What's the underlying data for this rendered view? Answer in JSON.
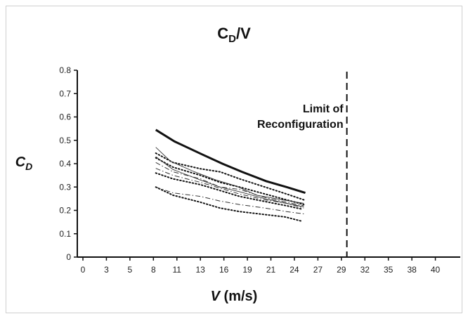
{
  "chart_data": {
    "type": "line",
    "title_main": "C",
    "title_sub": "D",
    "title_tail": "/V",
    "ylabel_main": "C",
    "ylabel_sub": "D",
    "xlabel_main": "V",
    "xlabel_units": " (m/s)",
    "x_ticks": [
      "0",
      "3",
      "5",
      "8",
      "11",
      "13",
      "16",
      "19",
      "21",
      "24",
      "27",
      "29",
      "32",
      "35",
      "38",
      "40"
    ],
    "y_ticks": [
      "0",
      "0.1",
      "0.2",
      "0.3",
      "0.4",
      "0.5",
      "0.6",
      "0.7",
      "0.8"
    ],
    "xlim": [
      0,
      42
    ],
    "ylim": [
      0,
      0.8
    ],
    "annotation": {
      "lines": [
        "Limit of",
        "Reconfiguration"
      ],
      "x": 29.7
    },
    "series": [
      {
        "style": "thick-solid",
        "x": [
          8.3,
          10.7,
          13.2,
          15.8,
          18.3,
          20.6,
          23.0,
          25.4
        ],
        "y": [
          0.545,
          0.495,
          0.44,
          0.4,
          0.365,
          0.325,
          0.3,
          0.275
        ]
      },
      {
        "style": "dotted",
        "x": [
          8.3,
          10.5,
          13.0,
          15.5,
          18.0,
          20.5,
          23.0,
          25.2
        ],
        "y": [
          0.445,
          0.405,
          0.378,
          0.365,
          0.335,
          0.3,
          0.27,
          0.245
        ]
      },
      {
        "style": "dotted",
        "x": [
          8.3,
          10.5,
          13.0,
          15.5,
          18.0,
          20.5,
          23.0,
          25.2
        ],
        "y": [
          0.425,
          0.385,
          0.35,
          0.32,
          0.3,
          0.27,
          0.245,
          0.225
        ]
      },
      {
        "style": "dotted",
        "x": [
          8.3,
          10.5,
          13.0,
          15.5,
          18.0,
          20.5,
          23.0,
          25.0
        ],
        "y": [
          0.36,
          0.335,
          0.31,
          0.285,
          0.26,
          0.238,
          0.22,
          0.205
        ]
      },
      {
        "style": "dotted",
        "x": [
          8.3,
          10.5,
          13.0,
          15.5,
          18.0,
          20.5,
          22.8,
          24.8
        ],
        "y": [
          0.3,
          0.265,
          0.235,
          0.21,
          0.195,
          0.182,
          0.172,
          0.155
        ]
      },
      {
        "style": "thin-solid",
        "x": [
          8.3,
          10.2,
          12.5,
          15.0,
          17.5,
          19.8,
          22.5,
          25.2
        ],
        "y": [
          0.47,
          0.41,
          0.365,
          0.33,
          0.305,
          0.265,
          0.245,
          0.23
        ]
      },
      {
        "style": "thin-solid",
        "x": [
          8.3,
          10.5,
          13.0,
          15.5,
          18.0,
          20.5,
          23.0,
          25.2
        ],
        "y": [
          0.43,
          0.375,
          0.33,
          0.3,
          0.28,
          0.25,
          0.23,
          0.215
        ]
      },
      {
        "style": "dash-dot",
        "x": [
          8.3,
          10.5,
          13.0,
          15.5,
          18.0,
          20.5,
          23.0,
          25.2
        ],
        "y": [
          0.405,
          0.365,
          0.335,
          0.3,
          0.29,
          0.255,
          0.235,
          0.22
        ]
      },
      {
        "style": "dash-dot",
        "x": [
          8.3,
          10.5,
          13.0,
          15.5,
          18.0,
          20.5,
          23.0,
          25.2
        ],
        "y": [
          0.38,
          0.35,
          0.32,
          0.295,
          0.27,
          0.245,
          0.23,
          0.21
        ]
      },
      {
        "style": "dash-dot",
        "x": [
          8.3,
          10.5,
          13.0,
          15.5,
          18.0,
          20.5,
          23.0,
          25.2
        ],
        "y": [
          0.3,
          0.275,
          0.26,
          0.24,
          0.225,
          0.21,
          0.195,
          0.185
        ]
      }
    ]
  }
}
